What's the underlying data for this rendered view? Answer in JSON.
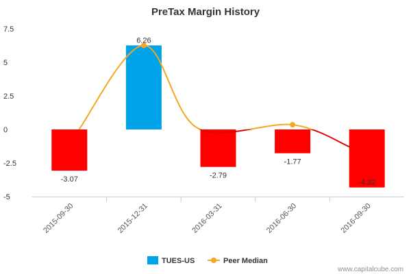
{
  "chart_data": {
    "type": "bar",
    "title": "PreTax Margin History",
    "categories": [
      "2015-09-30",
      "2015-12-31",
      "2016-03-31",
      "2016-06-30",
      "2016-09-30"
    ],
    "series": [
      {
        "name": "TUES-US",
        "type": "bar",
        "values": [
          -3.07,
          6.26,
          -2.79,
          -1.77,
          -4.32
        ],
        "labels": [
          "-3.07",
          "6.26",
          "-2.79",
          "-1.77",
          "-4.32"
        ],
        "positive_color": "#00a2e8",
        "negative_color": "#ff0000"
      },
      {
        "name": "Peer Median",
        "type": "line",
        "marker_indices": [
          1,
          3
        ],
        "values": [
          null,
          6.26,
          null,
          0.35,
          null
        ],
        "color": "#f5a623",
        "below_zero_color": "#e60000"
      }
    ],
    "y_ticks": [
      "7.5",
      "5",
      "2.5",
      "0",
      "-2.5",
      "-5"
    ],
    "ylim": [
      -5,
      7.5
    ],
    "legend": "bottom-center",
    "grid": false
  },
  "credit": "www.capitalcube.com"
}
